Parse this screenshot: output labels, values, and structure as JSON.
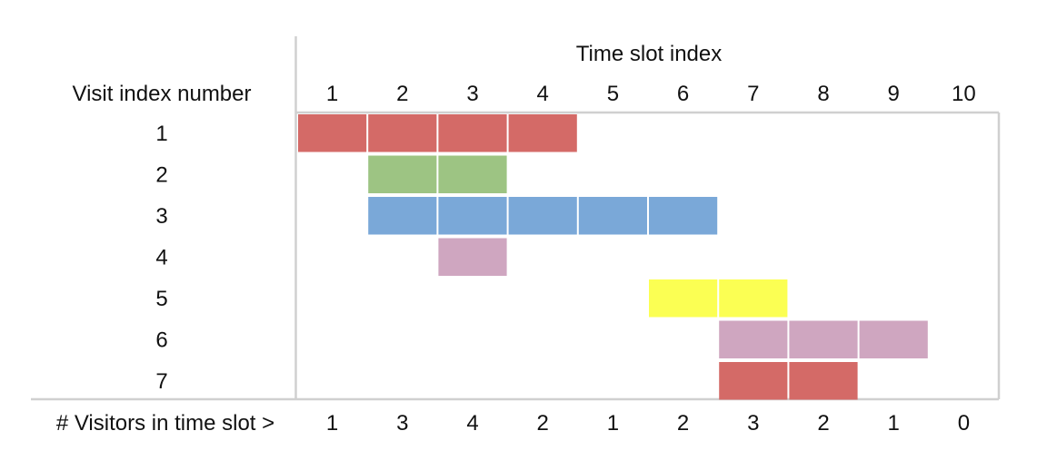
{
  "header": {
    "time_slot_label": "Time slot index",
    "visit_label": "Visit index number"
  },
  "time_slots": [
    "1",
    "2",
    "3",
    "4",
    "5",
    "6",
    "7",
    "8",
    "9",
    "10"
  ],
  "visits": [
    "1",
    "2",
    "3",
    "4",
    "5",
    "6",
    "7"
  ],
  "footer": {
    "label": "# Visitors in time slot >",
    "counts": [
      "1",
      "3",
      "4",
      "2",
      "1",
      "2",
      "3",
      "2",
      "1",
      "0"
    ]
  },
  "colors": {
    "red": "#d46a67",
    "green": "#9dc483",
    "blue": "#7aa8d8",
    "pink": "#cfa6c0",
    "yellow": "#fbff53",
    "grid_line": "#d0d0d0"
  },
  "chart_data": {
    "type": "table",
    "rows": [
      {
        "visit": 1,
        "start_slot": 1,
        "end_slot": 4,
        "color": "#d46a67"
      },
      {
        "visit": 2,
        "start_slot": 2,
        "end_slot": 3,
        "color": "#9dc483"
      },
      {
        "visit": 3,
        "start_slot": 2,
        "end_slot": 6,
        "color": "#7aa8d8"
      },
      {
        "visit": 4,
        "start_slot": 3,
        "end_slot": 3,
        "color": "#cfa6c0"
      },
      {
        "visit": 5,
        "start_slot": 6,
        "end_slot": 7,
        "color": "#fbff53"
      },
      {
        "visit": 6,
        "start_slot": 7,
        "end_slot": 9,
        "color": "#cfa6c0"
      },
      {
        "visit": 7,
        "start_slot": 7,
        "end_slot": 8,
        "color": "#d46a67"
      }
    ],
    "visitors_per_slot": [
      1,
      3,
      4,
      2,
      1,
      2,
      3,
      2,
      1,
      0
    ]
  }
}
